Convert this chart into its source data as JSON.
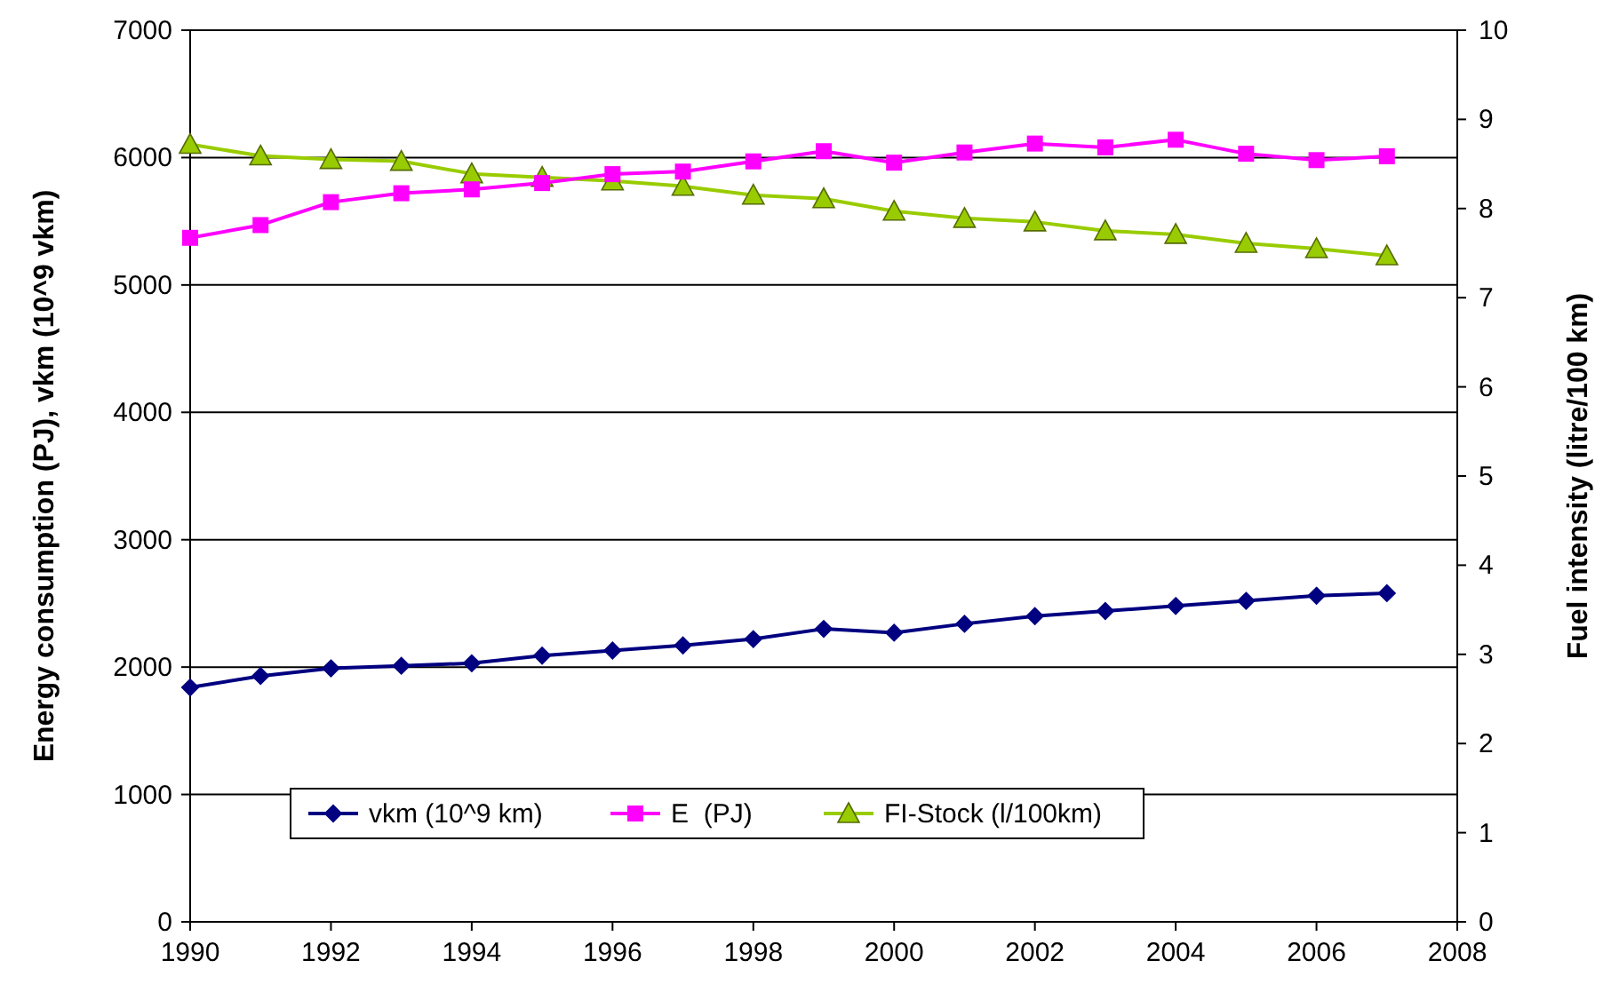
{
  "chart_data": {
    "type": "line",
    "xlabel": null,
    "ylabel": "Energy consumption (PJ), vkm (10^9 vkm)",
    "y2label": "Fuel intensity (litre/100 km)",
    "x": [
      1990,
      1991,
      1992,
      1993,
      1994,
      1995,
      1996,
      1997,
      1998,
      1999,
      2000,
      2001,
      2002,
      2003,
      2004,
      2005,
      2006,
      2007
    ],
    "series": [
      {
        "name": "vkm (10^9 km)",
        "color": "#000080",
        "marker": "diamond",
        "values": [
          1840,
          1930,
          1990,
          2010,
          2030,
          2090,
          2130,
          2170,
          2220,
          2300,
          2270,
          2340,
          2400,
          2440,
          2480,
          2520,
          2560,
          2580
        ]
      },
      {
        "name": "E  (PJ)",
        "color": "#ff00ff",
        "marker": "square",
        "values": [
          5370,
          5470,
          5650,
          5720,
          5750,
          5800,
          5870,
          5890,
          5970,
          6050,
          5960,
          6040,
          6110,
          6080,
          6140,
          6030,
          5980,
          6010
        ]
      },
      {
        "name": "FI-Stock (l/100km)",
        "color": "#99cc00",
        "marker": "triangle",
        "axis": "y2",
        "values": [
          8.72,
          8.59,
          8.55,
          8.53,
          8.39,
          8.35,
          8.31,
          8.25,
          8.15,
          8.11,
          7.97,
          7.89,
          7.85,
          7.75,
          7.71,
          7.61,
          7.55,
          7.47
        ]
      }
    ],
    "xlim": [
      1990,
      2008
    ],
    "xticks": [
      1990,
      1992,
      1994,
      1996,
      1998,
      2000,
      2002,
      2004,
      2006,
      2008
    ],
    "ylim": [
      0,
      7000
    ],
    "yticks": [
      0,
      1000,
      2000,
      3000,
      4000,
      5000,
      6000,
      7000
    ],
    "y2lim": [
      0,
      10
    ],
    "y2ticks": [
      0,
      1,
      2,
      3,
      4,
      5,
      6,
      7,
      8,
      9,
      10
    ],
    "grid": "y",
    "legend": "bottom"
  }
}
